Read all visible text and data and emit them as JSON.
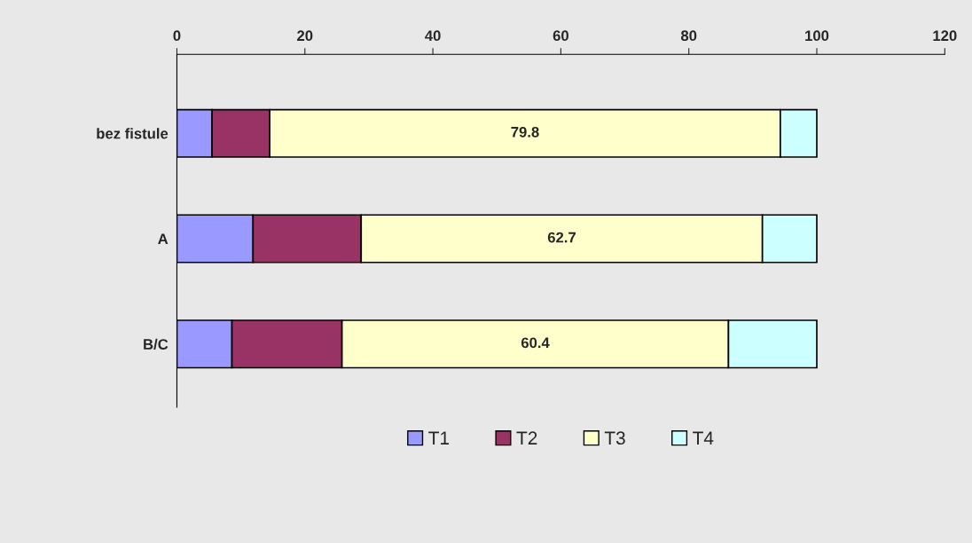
{
  "chart_data": {
    "type": "bar",
    "orientation": "horizontal",
    "stacked": true,
    "categories": [
      "bez fistule",
      "A",
      "B/C"
    ],
    "series": [
      {
        "name": "T1",
        "color": "#9999ff",
        "values": [
          5.5,
          11.9,
          8.6
        ]
      },
      {
        "name": "T2",
        "color": "#993366",
        "values": [
          9.0,
          16.9,
          17.2
        ]
      },
      {
        "name": "T3",
        "color": "#ffffcc",
        "values": [
          79.8,
          62.7,
          60.4
        ],
        "value_labels": [
          "79.8",
          "62.7",
          "60.4"
        ]
      },
      {
        "name": "T4",
        "color": "#ccffff",
        "values": [
          5.7,
          8.5,
          13.8
        ]
      }
    ],
    "xlim": [
      0,
      120
    ],
    "xticks": [
      0,
      20,
      40,
      60,
      80,
      100,
      120
    ],
    "grid": false,
    "legend": "bottom"
  }
}
